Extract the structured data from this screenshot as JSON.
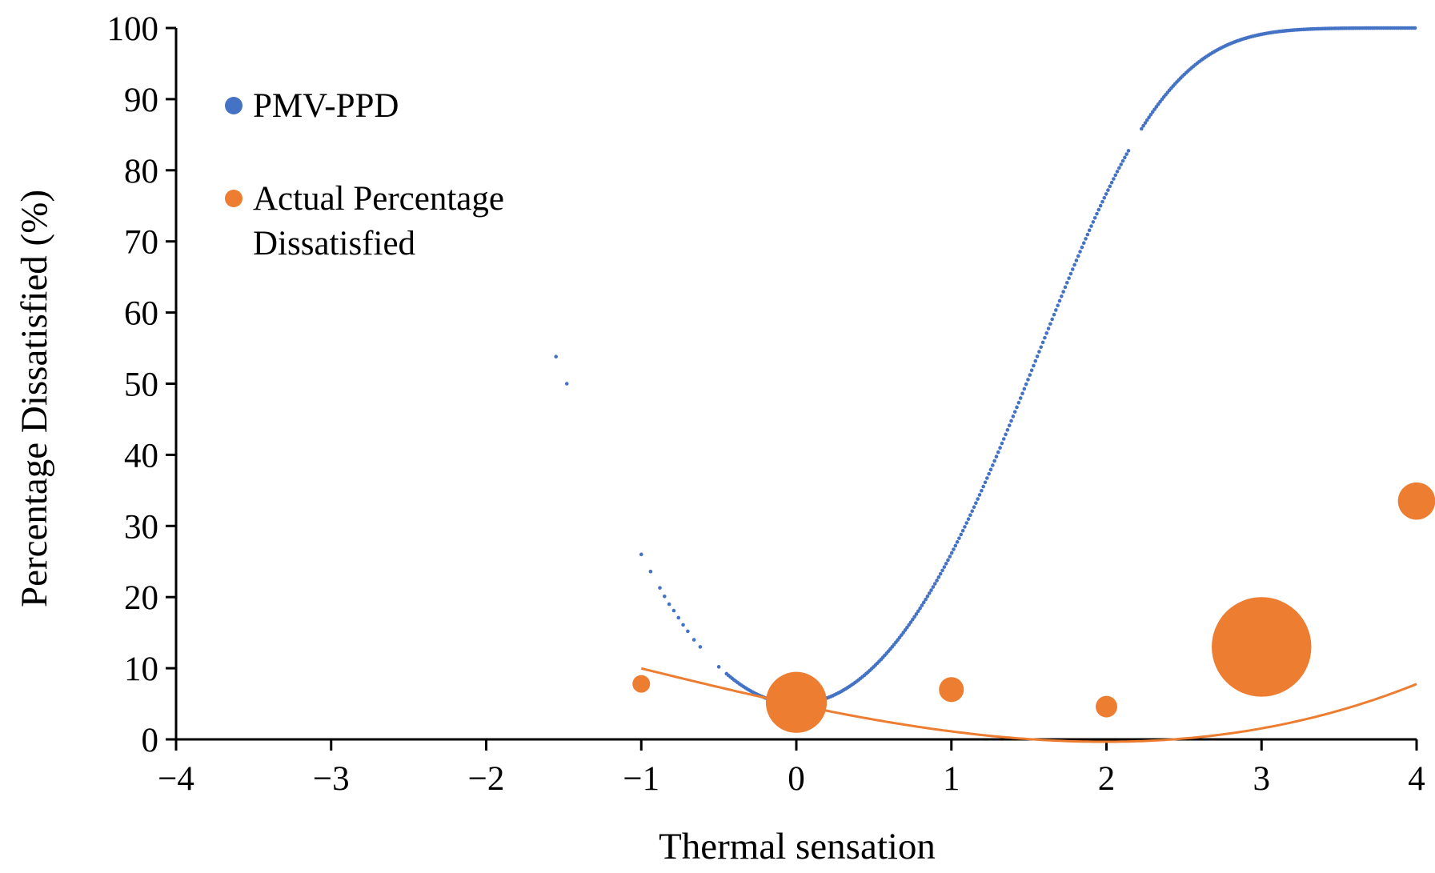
{
  "chart_data": {
    "type": "scatter",
    "xlabel": "Thermal sensation",
    "ylabel": "Percentage Dissatisfied (%)",
    "xlim": [
      -4,
      4
    ],
    "ylim": [
      0,
      100
    ],
    "xticks": [
      -4,
      -3,
      -2,
      -1,
      0,
      1,
      2,
      3,
      4
    ],
    "yticks": [
      0,
      10,
      20,
      30,
      40,
      50,
      60,
      70,
      80,
      90,
      100
    ],
    "xtick_labels": [
      "−4",
      "−3",
      "−2",
      "−1",
      "0",
      "1",
      "2",
      "3",
      "4"
    ],
    "ytick_labels": [
      "0",
      "10",
      "20",
      "30",
      "40",
      "50",
      "60",
      "70",
      "80",
      "90",
      "100"
    ],
    "legend": {
      "placement": "top-left",
      "entries": [
        {
          "series": "PMV-PPD",
          "lines": [
            "PMV-PPD"
          ]
        },
        {
          "series": "Actual Percentage Dissatisfied",
          "lines": [
            "Actual Percentage",
            "Dissatisfied"
          ]
        }
      ]
    },
    "series": [
      {
        "name": "PMV-PPD",
        "kind": "scatter-curve",
        "color": "#4472C4",
        "formula": "PPD = 100 - 95 * exp(-0.03353*PMV^4 - 0.2179*PMV^2)",
        "curve_x_range": [
          -0.45,
          4.0
        ],
        "extra_points": [
          {
            "x": -1.55,
            "y": 53.8
          },
          {
            "x": -1.48,
            "y": 50.0
          },
          {
            "x": -1.0,
            "y": 26.0
          },
          {
            "x": -0.94,
            "y": 23.6
          },
          {
            "x": -0.88,
            "y": 21.3
          },
          {
            "x": -0.85,
            "y": 20.1
          },
          {
            "x": -0.82,
            "y": 19.0
          },
          {
            "x": -0.79,
            "y": 18.1
          },
          {
            "x": -0.76,
            "y": 17.1
          },
          {
            "x": -0.73,
            "y": 16.1
          },
          {
            "x": -0.7,
            "y": 15.2
          },
          {
            "x": -0.66,
            "y": 14.0
          },
          {
            "x": -0.62,
            "y": 13.0
          },
          {
            "x": -0.5,
            "y": 10.2
          }
        ]
      },
      {
        "name": "Actual Percentage Dissatisfied",
        "kind": "bubble",
        "color": "#ED7D31",
        "points": [
          {
            "x": -1,
            "y": 7.8,
            "weight": 1
          },
          {
            "x": 0,
            "y": 5.2,
            "weight": 12
          },
          {
            "x": 1,
            "y": 7.0,
            "weight": 2
          },
          {
            "x": 2,
            "y": 4.6,
            "weight": 1.5
          },
          {
            "x": 3,
            "y": 13.0,
            "weight": 32
          },
          {
            "x": 4,
            "y": 33.5,
            "weight": 4.5
          }
        ],
        "trendline": {
          "type": "polynomial",
          "coefficients": [
            4.9,
            -4.6,
            0.65,
            0.17
          ],
          "x_range": [
            -1,
            4
          ],
          "color": "#ED7D31"
        }
      }
    ]
  }
}
